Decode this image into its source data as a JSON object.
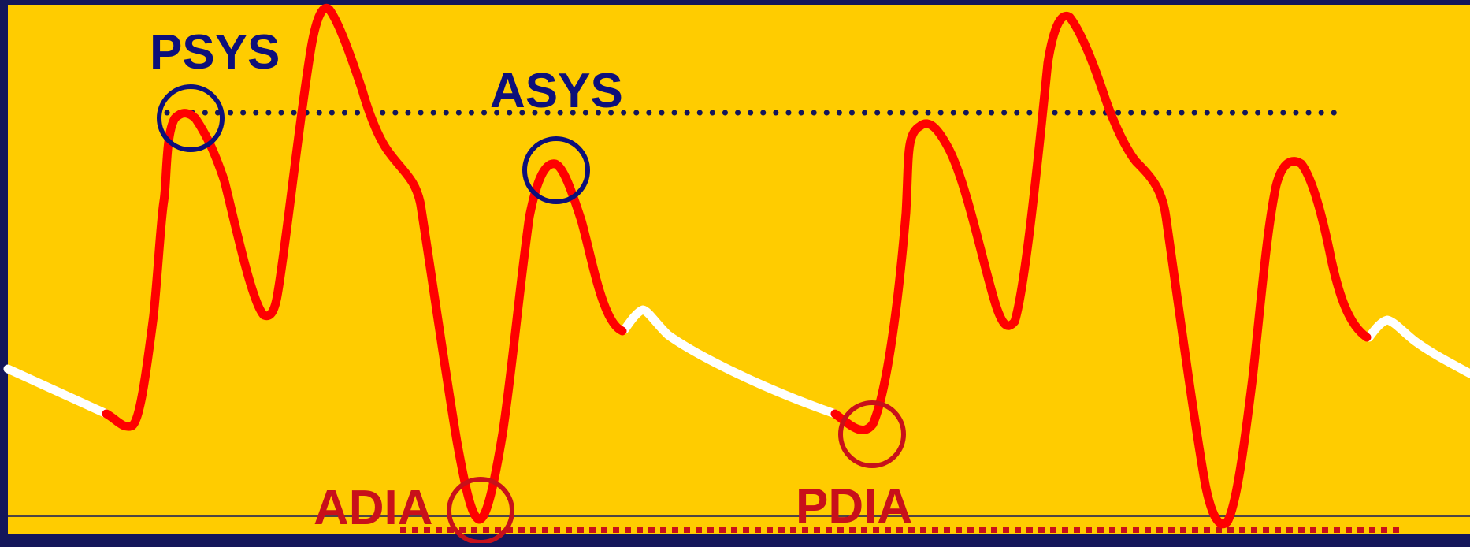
{
  "labels": {
    "psys": "PSYS",
    "asys": "ASYS",
    "adia": "ADIA",
    "pdia": "PDIA"
  },
  "colors": {
    "frame": "#14165a",
    "background": "#ffcc00",
    "waveform": "#ff0000",
    "diastolic_runoff": "#ffffff",
    "systolic_markers": "#0d0f7a",
    "diastolic_markers": "#c8101a"
  },
  "markers": {
    "systolic_reference": "dotted line through PSYS",
    "diastolic_reference": "dashed line through ADIA"
  }
}
